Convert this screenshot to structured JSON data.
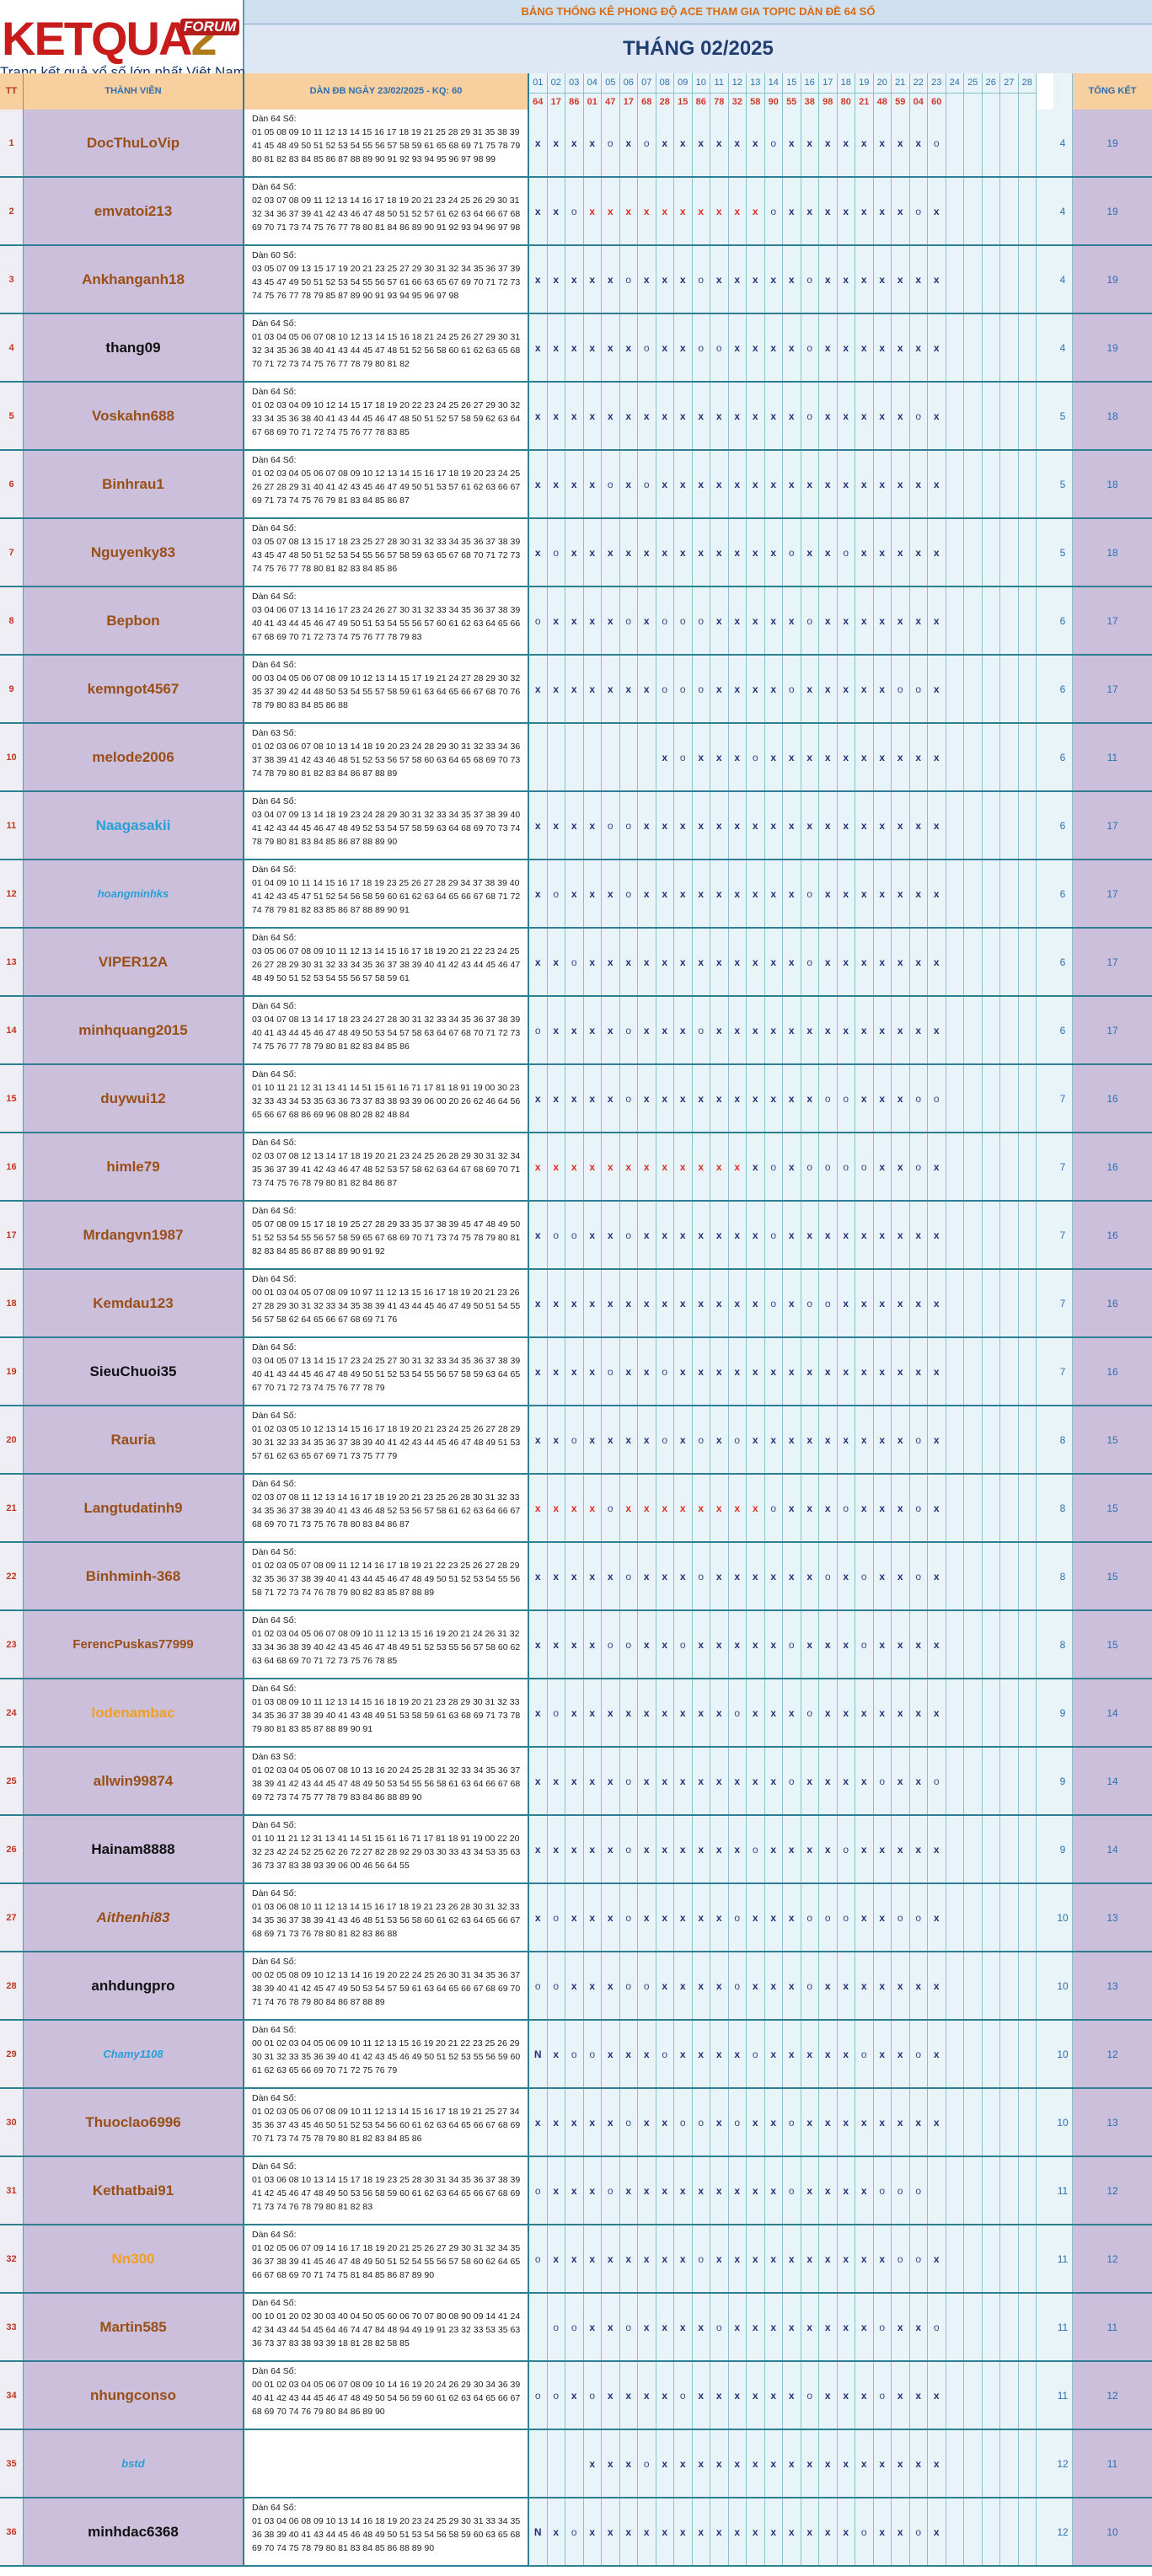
{
  "header": {
    "brand": "KETQUA",
    "brand_digit": "2",
    "forum_tag": "FORUM",
    "tagline": "Trang kết quả xổ số lớn nhất Việt Nam",
    "banner": "BẢNG THỐNG KÊ PHONG ĐỘ ACE THAM GIA TOPIC DÀN ĐỀ 64 SỐ",
    "month_title": "THÁNG 02/2025",
    "col_tt": "TT",
    "col_member": "THÀNH VIÊN",
    "col_dan": "DÀN ĐB NGÀY 23/02/2025 - KQ: 60",
    "col_total": "TỔNG KẾT"
  },
  "days": [
    "01",
    "02",
    "03",
    "04",
    "05",
    "06",
    "07",
    "08",
    "09",
    "10",
    "11",
    "12",
    "13",
    "14",
    "15",
    "16",
    "17",
    "18",
    "19",
    "20",
    "21",
    "22",
    "23",
    "24",
    "25",
    "26",
    "27",
    "28"
  ],
  "results": [
    "64",
    "17",
    "86",
    "01",
    "47",
    "17",
    "68",
    "28",
    "15",
    "86",
    "78",
    "32",
    "58",
    "90",
    "55",
    "38",
    "98",
    "80",
    "21",
    "48",
    "59",
    "04",
    "60",
    "",
    "",
    "",
    "",
    ""
  ],
  "colors": {
    "name_brown": "#9a4f16",
    "name_black": "#111111",
    "name_blue": "#2a9fd6",
    "name_orange": "#f0a020",
    "miss_red": "#e02a24"
  },
  "rows": [
    {
      "tt": "1",
      "name": "DocThuLoVip",
      "color": "brown",
      "italic": false,
      "label": "Dàn 64 Số:",
      "nums": "01 05 08 09 10 11 12 13 14 15 16 17 18 19 21 25 28 29 31 35 38 39 41 45 48 49 50 51 52 53 54 55 56 57 58 59 61 65 68 69 71 75 78 79 80 81 82 83 84 85 86 87 88 89 90 91 92 93 94 95 96 97 98 99",
      "marks": "xxxxoxoxxxxxxoxxxxxxxxo",
      "red": [],
      "cnt": "4",
      "tot": "19"
    },
    {
      "tt": "2",
      "name": "emvatoi213",
      "color": "brown",
      "italic": false,
      "label": "Dàn 64 Số:",
      "nums": "02 03 07 08 09 11 12 13 14 16 17 18 19 20 21 23 24 25 26 29 30 31 32 34 36 37 39 41 42 43 46 47 48 50 51 52 57 61 62 63 64 66 67 68 69 70 71 73 74 75 76 77 78 80 81 84 86 89 90 91 92 93 94 96 97 98",
      "marks": "xxoxxxxxxxxxxoxxxxxxxox",
      "red": [
        3,
        4,
        5,
        6,
        7,
        8,
        9,
        10,
        11,
        12,
        13
      ],
      "cnt": "4",
      "tot": "19"
    },
    {
      "tt": "3",
      "name": "Ankhanganh18",
      "color": "brown",
      "italic": false,
      "label": "Dàn 60 Số:",
      "nums": "03 05 07 09 13 15 17 19 20 21 23 25 27 29 30 31 32 34 35 36 37 39 43 45 47 49 50 51 52 53 54 55 56 57 61 66 63 65 67 69 70 71 72 73 74 75 76 77 78 79 85 87 89 90 91 93 94 95 96 97 98",
      "marks": "xxxxxoxxxoxxxxxoxxxxxxx",
      "red": [],
      "cnt": "4",
      "tot": "19"
    },
    {
      "tt": "4",
      "name": "thang09",
      "color": "black",
      "italic": false,
      "label": "Dàn 64 Số:",
      "nums": "01 03 04 05 06 07 08 10 12 13 14 15 16 18 21 24 25 26 27 29 30 31 32 34 35 36 38 40 41 43 44 45 47 48 51 52 56 58 60 61 62 63 65 68 70 71 72 73 74 75 76 77 78 79 80 81 82",
      "marks": "xxxxxxoxxooxxxxoxxxxxxx",
      "red": [],
      "cnt": "4",
      "tot": "19"
    },
    {
      "tt": "5",
      "name": "Voskahn688",
      "color": "brown",
      "italic": false,
      "label": "Dàn 64 Số:",
      "nums": "01 02 03 04 09 10 12 14 15 17 18 19 20 22 23 24 25 26 27 29 30 32 33 34 35 36 38 40 41 43 44 45 46 47 48 50 51 52 57 58 59 62 63 64 67 68 69 70 71 72 74 75 76 77 78 83 85",
      "marks": "xxxxxxxxxxxxxxxoxxxxxox",
      "red": [],
      "cnt": "5",
      "tot": "18"
    },
    {
      "tt": "6",
      "name": "Binhrau1",
      "color": "brown",
      "italic": false,
      "label": "Dàn 64 Số:",
      "nums": "01 02 03 04 05 06 07 08 09 10 12 13 14 15 16 17 18 19 20 23 24 25 26 27 28 29 31 40 41 42 43 45 46 47 49 50 51 53 57 61 62 63 66 67 69 71 73 74 75 76 79 81 83 84 85 86 87",
      "marks": "xxxxoxoxxxxxxxxxxxxxxxx",
      "red": [],
      "cnt": "5",
      "tot": "18"
    },
    {
      "tt": "7",
      "name": "Nguyenky83",
      "color": "brown",
      "italic": false,
      "label": "Dàn 64 Số:",
      "nums": "03 05 07 08 13 15 17 18 23 25 27 28 30 31 32 33 34 35 36 37 38 39 43 45 47 48 50 51 52 53 54 55 56 57 58 59 63 65 67 68 70 71 72 73 74 75 76 77 78 80 81 82 83 84 85 86",
      "marks": "xoxxxxxxxxxxxxoxxoxxxxx",
      "red": [],
      "cnt": "5",
      "tot": "18"
    },
    {
      "tt": "8",
      "name": "Bepbon",
      "color": "brown",
      "italic": false,
      "label": "Dàn 64 Số:",
      "nums": "03 04 06 07 13 14 16 17 23 24 26 27 30 31 32 33 34 35 36 37 38 39 40 41 43 44 45 46 47 49 50 51 53 54 55 56 57 60 61 62 63 64 65 66 67 68 69 70 71 72 73 74 75 76 77 78 79 83",
      "marks": "oxxxxoxoooxxxxxoxxxxxxx",
      "red": [],
      "cnt": "6",
      "tot": "17"
    },
    {
      "tt": "9",
      "name": "kemngot4567",
      "color": "brown",
      "italic": false,
      "label": "Dàn 64 Số:",
      "nums": "00 03 04 05 06 07 08 09 10 12 13 14 15 17 19 21 24 27 28 29 30 32 35 37 39 42 44 48 50 53 54 55 57 58 59 61 63 64 65 66 67 68 70 76 78 79 80 83 84 85 86 88",
      "marks": "xxxxxxxoooxxxxoxxxxxoox",
      "red": [],
      "cnt": "6",
      "tot": "17"
    },
    {
      "tt": "10",
      "name": "melode2006",
      "color": "brown",
      "italic": false,
      "label": "Dàn 63 Số:",
      "nums": "01 02 03 06 07 08 10 13 14 18 19 20 23 24 28 29 30 31 32 33 34 36 37 38 39 41 42 43 46 48 51 52 53 56 57 58 60 63 64 65 68 69 70 73 74 78 79 80 81 82 83 84 86 87 88 89",
      "marks": "-------xoxxxoxxxxxxxxxx",
      "red": [],
      "cnt": "6",
      "tot": "11"
    },
    {
      "tt": "11",
      "name": "Naagasakii",
      "color": "blue",
      "italic": false,
      "label": "Dàn 64 Số:",
      "nums": "03 04 07 09 13 14 18 19 23 24 28 29 30 31 32 33 34 35 37 38 39 40 41 42 43 44 45 46 47 48 49 52 53 54 57 58 59 63 64 68 69 70 73 74 78 79 80 81 83 84 85 86 87 88 89 90",
      "marks": "xxxxooxxxxxxxxxxxxxxxxx",
      "red": [],
      "cnt": "6",
      "tot": "17"
    },
    {
      "tt": "12",
      "name": "hoangminhks",
      "color": "blue",
      "italic": true,
      "label": "Dàn 64 Số:",
      "nums": "01 04 09 10 11 14 15 16 17 18 19 23 25 26 27 28 29 34 37 38 39 40 41 42 43 45 47 51 52 54 56 58 59 60 61 62 63 64 65 66 67 68 71 72 74 78 79 81 82 83 85 86 87 88 89 90 91",
      "marks": "xoxxxoxxxxxxxxxoxxxxxxx",
      "red": [],
      "cnt": "6",
      "tot": "17"
    },
    {
      "tt": "13",
      "name": "VIPER12A",
      "color": "brown",
      "italic": false,
      "label": "Dàn 64 Số:",
      "nums": "03 05 06 07 08 09 10 11 12 13 14 15 16 17 18 19 20 21 22 23 24 25 26 27 28 29 30 31 32 33 34 35 36 37 38 39 40 41 42 43 44 45 46 47 48 49 50 51 52 53 54 55 56 57 58 59 61",
      "marks": "xxoxxxxxxxxxxxxoxxxxxxx",
      "red": [],
      "cnt": "6",
      "tot": "17"
    },
    {
      "tt": "14",
      "name": "minhquang2015",
      "color": "brown",
      "italic": false,
      "label": "Dàn 64 Số:",
      "nums": "03 04 07 08 13 14 17 18 23 24 27 28 30 31 32 33 34 35 36 37 38 39 40 41 43 44 45 46 47 48 49 50 53 54 57 58 63 64 67 68 70 71 72 73 74 75 76 77 78 79 80 81 82 83 84 85 86",
      "marks": "oxxxxoxxxoxxxxxxxxxxxxx",
      "red": [],
      "cnt": "6",
      "tot": "17"
    },
    {
      "tt": "15",
      "name": "duywui12",
      "color": "brown",
      "italic": false,
      "label": "Dàn 64 Số:",
      "nums": "01 10 11 21 12 31 13 41 14 51 15 61 16 71 17 81 18 91 19 00 30 23 32 33 43 34 53 35 63 36 73 37 83 38 93 39 06 00 20 26 62 46 64 56 65 66 67 68 86 69 96 08 80 28 82 48 84",
      "marks": "xxxxxoxxxxxxxxxxooxxxoo",
      "red": [],
      "cnt": "7",
      "tot": "16"
    },
    {
      "tt": "16",
      "name": "himle79",
      "color": "brown",
      "italic": false,
      "label": "Dàn 64 Số:",
      "nums": "02 03 07 08 12 13 14 17 18 19 20 21 23 24 25 26 28 29 30 31 32 34 35 36 37 39 41 42 43 46 47 48 52 53 57 58 62 63 64 67 68 69 70 71 73 74 75 76 78 79 80 81 82 84 86 87",
      "marks": "xxxxxxxxxxxxxoxooooxxox",
      "red": [
        0,
        1,
        2,
        3,
        4,
        5,
        6,
        7,
        8,
        9,
        10,
        11
      ],
      "cnt": "7",
      "tot": "16"
    },
    {
      "tt": "17",
      "name": "Mrdangvn1987",
      "color": "brown",
      "italic": false,
      "label": "Dàn 64 Số:",
      "nums": "05 07 08 09 15 17 18 19 25 27 28 29 33 35 37 38 39 45 47 48 49 50 51 52 53 54 55 56 57 58 59 65 67 68 69 70 71 73 74 75 78 79 80 81 82 83 84 85 86 87 88 89 90 91 92",
      "marks": "xooxxoxxxxxxxoxxxxxxxxx",
      "red": [],
      "cnt": "7",
      "tot": "16"
    },
    {
      "tt": "18",
      "name": "Kemdau123",
      "color": "brown",
      "italic": false,
      "label": "Dàn 64 Số:",
      "nums": "00 01 03 04 05 07 08 09 10 97 11 12 13 15 16 17 18 19 20 21 23 26 27 28 29 30 31 32 33 34 35 38 39 41 43 44 45 46 47 49 50 51 54 55 56 57 58 62 64 65 66 67 68 69 71 76",
      "marks": "xxxxxxxxxxxxxoxooxxxxxx",
      "red": [],
      "cnt": "7",
      "tot": "16"
    },
    {
      "tt": "19",
      "name": "SieuChuoi35",
      "color": "black",
      "italic": false,
      "label": "Dàn 64 Số:",
      "nums": "03 04 05 07 13 14 15 17 23 24 25 27 30 31 32 33 34 35 36 37 38 39 40 41 43 44 45 46 47 48 49 50 51 52 53 54 55 56 57 58 59 63 64 65 67 70 71 72 73 74 75 76 77 78 79",
      "marks": "xxxxoxxoxxxxxxxxxxxxxxx",
      "red": [],
      "cnt": "7",
      "tot": "16"
    },
    {
      "tt": "20",
      "name": "Rauria",
      "color": "brown",
      "italic": false,
      "label": "Dàn 64 Số:",
      "nums": "01 02 03 05 10 12 13 14 15 16 17 18 19 20 21 23 24 25 26 27 28 29 30 31 32 33 34 35 36 37 38 39 40 41 42 43 44 45 46 47 48 49 51 53 57 61 62 63 65 67 69 71 73 75 77 79",
      "marks": "xxoxxxxoxoxoxxxxxxxxxox",
      "red": [],
      "cnt": "8",
      "tot": "15"
    },
    {
      "tt": "21",
      "name": "Langtudatinh9",
      "color": "brown",
      "italic": false,
      "label": "Dàn 64 Số:",
      "nums": "02 03 07 08 11 12 13 14 16 17 18 19 20 21 23 25 26 28 30 31 32 33 34 35 36 37 38 39 40 41 43 46 48 52 53 56 57 58 61 62 63 64 66 67 68 69 70 71 73 75 76 78 80 83 84 86 87",
      "marks": "xxxxoxxxxxxxxoxxxoxxxox",
      "red": [
        0,
        1,
        2,
        3,
        4,
        5,
        6,
        7,
        8,
        9,
        10,
        11,
        12
      ],
      "cnt": "8",
      "tot": "15"
    },
    {
      "tt": "22",
      "name": "Binhminh-368",
      "color": "brown",
      "italic": false,
      "label": "Dàn 64 Số:",
      "nums": "01 02 03 05 07 08 09 11 12 14 16 17 18 19 21 22 23 25 26 27 28 29 32 35 36 37 38 39 40 41 43 44 45 46 47 48 49 50 51 52 53 54 55 56 58 71 72 73 74 76 78 79 80 82 83 85 87 88 89",
      "marks": "xxxxxoxxxoxxxxxxoxoxxox",
      "red": [],
      "cnt": "8",
      "tot": "15"
    },
    {
      "tt": "23",
      "name": "FerencPuskas77999",
      "color": "brown",
      "italic": false,
      "label": "Dàn 64 Số:",
      "nums": "01 02 03 04 05 06 07 08 09 10 11 12 13 15 16 19 20 21 24 26 31 32 33 34 36 38 39 40 42 43 45 46 47 48 49 51 52 53 55 56 57 58 60 62 63 64 68 69 70 71 72 73 75 76 78 85",
      "marks": "xxxxooxxoxxxxxoxxxoxxxx",
      "red": [],
      "cnt": "8",
      "tot": "15"
    },
    {
      "tt": "24",
      "name": "lodenambac",
      "color": "orange",
      "italic": false,
      "label": "Dàn 64 Số:",
      "nums": "01 03 08 09 10 11 12 13 14 15 16 18 19 20 21 23 28 29 30 31 32 33 34 35 36 37 38 39 40 41 43 48 49 51 53 58 59 61 63 68 69 71 73 78 79 80 81 83 85 87 88 89 90 91",
      "marks": "xoxxxxxxxxxoxxxoxxxxxxx",
      "red": [],
      "cnt": "9",
      "tot": "14"
    },
    {
      "tt": "25",
      "name": "allwin99874",
      "color": "brown",
      "italic": false,
      "label": "Dàn 63 Số:",
      "nums": "01 02 03 04 05 06 07 08 10 13 16 20 24 25 28 31 32 33 34 35 36 37 38 39 41 42 43 44 45 47 48 49 50 53 54 55 56 58 61 63 64 66 67 68 69 72 73 74 75 77 78 79 83 84 86 88 89 90",
      "marks": "xxxxxoxxxxxxxxoxxxxoxxo",
      "red": [],
      "cnt": "9",
      "tot": "14"
    },
    {
      "tt": "26",
      "name": "Hainam8888",
      "color": "black",
      "italic": false,
      "label": "Dàn 64 Số:",
      "nums": "01 10 11 21 12 31 13 41 14 51 15 61 16 71 17 81 18 91 19 00 22 20 32 23 42 24 52 25 62 26 72 27 82 28 92 29 03 30 33 43 34 53 35 63 36 73 37 83 38 93 39 06 00 46 56 64 55",
      "marks": "xxxxxoxxxxxxoxxxxoxxxxx",
      "red": [],
      "cnt": "9",
      "tot": "14"
    },
    {
      "tt": "27",
      "name": "Aithenhi83",
      "color": "brown",
      "italic": true,
      "label": "Dàn 64 Số:",
      "nums": "01 03 06 08 10 11 12 13 14 15 16 17 18 19 21 23 26 28 30 31 32 33 34 35 36 37 38 39 41 43 46 48 51 53 56 58 60 61 62 63 64 65 66 67 68 69 71 73 76 78 80 81 82 83 86 88",
      "marks": "xoxxxoxxxxxoxxxoooxxoox",
      "red": [],
      "cnt": "10",
      "tot": "13"
    },
    {
      "tt": "28",
      "name": "anhdungpro",
      "color": "black",
      "italic": false,
      "label": "Dàn 64 Số:",
      "nums": "00 02 05 08 09 10 12 13 14 16 19 20 22 24 25 26 30 31 34 35 36 37 38 39 40 41 42 45 47 49 50 53 54 57 59 61 63 64 65 66 67 68 69 70 71 74 76 78 79 80 84 86 87 88 89",
      "marks": "ooxxxooxxxxoxxxoxxxxxxx",
      "red": [],
      "cnt": "10",
      "tot": "13"
    },
    {
      "tt": "29",
      "name": "Chamy1108",
      "color": "blue",
      "italic": true,
      "label": "Dàn 64 Số:",
      "nums": "00 01 02 03 04 05 06 09 10 11 12 13 15 16 19 20 21 22 23 25 26 29 30 31 32 33 35 36 39 40 41 42 43 45 46 49 50 51 52 53 55 56 59 60 61 62 63 65 66 69 70 71 72 75 76 79",
      "marks": "Nxooxxxoxxxxoxxxxxoxxox",
      "red": [],
      "cnt": "10",
      "tot": "12"
    },
    {
      "tt": "30",
      "name": "Thuoclao6996",
      "color": "brown",
      "italic": false,
      "label": "Dàn 64 Số:",
      "nums": "01 02 03 05 06 07 08 09 10 11 12 13 14 15 16 17 18 19 21 25 27 34 35 36 37 43 45 46 50 51 52 53 54 56 60 61 62 63 64 65 66 67 68 69 70 71 73 74 75 78 79 80 81 82 83 84 85 86",
      "marks": "xxxxxoxxooxoxxoxxxxxxxx",
      "red": [],
      "cnt": "10",
      "tot": "13"
    },
    {
      "tt": "31",
      "name": "Kethatbai91",
      "color": "brown",
      "italic": false,
      "label": "Dàn 64 Số:",
      "nums": "01 03 06 08 10 13 14 15 17 18 19 23 25 28 30 31 34 35 36 37 38 39 41 42 45 46 47 48 49 50 53 56 58 59 60 61 62 63 64 65 66 67 68 69 71 73 74 76 78 79 80 81 82 83",
      "marks": "oxxxoxxxxxxxxxoxxxxooo",
      "red": [],
      "cnt": "11",
      "tot": "12"
    },
    {
      "tt": "32",
      "name": "Nn300",
      "color": "orange",
      "italic": false,
      "label": "Dàn 64 Số:",
      "nums": "01 02 05 06 07 09 14 16 17 18 19 20 21 25 26 27 29 30 31 32 34 35 36 37 38 39 41 45 46 47 48 49 50 51 52 54 55 56 57 58 60 62 64 65 66 67 68 69 70 71 74 75 81 84 85 86 87 89 90",
      "marks": "oxxxxxxxxoxxxxxxxxxxoox",
      "red": [],
      "cnt": "11",
      "tot": "12"
    },
    {
      "tt": "33",
      "name": "Martin585",
      "color": "brown",
      "italic": false,
      "label": "Dàn 64 Số:",
      "nums": "00 10 01 20 02 30 03 40 04 50 05 60 06 70 07 80 08 90 09 14 41 24 42 34 43 44 54 45 64 46 74 47 84 48 94 49 19 91 23 32 33 53 35 63 36 73 37 83 38 93 39 18 81 28 82 58 85",
      "marks": "-ooxxoxxxxoxxxxxxxxoxxo",
      "red": [],
      "cnt": "11",
      "tot": "11"
    },
    {
      "tt": "34",
      "name": "nhungconso",
      "color": "brown",
      "italic": false,
      "label": "Dàn 64 Số:",
      "nums": "00 01 02 03 04 05 06 07 08 09 10 14 16 19 20 24 26 29 30 34 36 39 40 41 42 43 44 45 46 47 48 49 50 54 56 59 60 61 62 63 64 65 66 67 68 69 70 74 76 79 80 84 86 89 90",
      "marks": "ooxoxxxxoxxxxxxoxxxoxxx",
      "red": [],
      "cnt": "11",
      "tot": "12"
    },
    {
      "tt": "35",
      "name": "bstd",
      "color": "blue",
      "italic": true,
      "label": "",
      "nums": "",
      "marks": "---xxxoxxxxxxxxxxxxxxxx",
      "red": [],
      "cnt": "12",
      "tot": "11"
    },
    {
      "tt": "36",
      "name": "minhdac6368",
      "color": "black",
      "italic": false,
      "label": "Dàn 64 Số:",
      "nums": "01 03 04 06 08 09 10 13 14 16 18 19 20 23 24 25 29 30 31 33 34 35 36 38 39 40 41 43 44 45 46 48 49 50 51 53 54 56 58 59 60 63 65 68 69 70 74 75 78 79 80 81 83 84 85 86 88 89 90",
      "marks": "Nxoxxxxxxxxxxxxxxxoxxox",
      "red": [],
      "cnt": "12",
      "tot": "10"
    }
  ]
}
